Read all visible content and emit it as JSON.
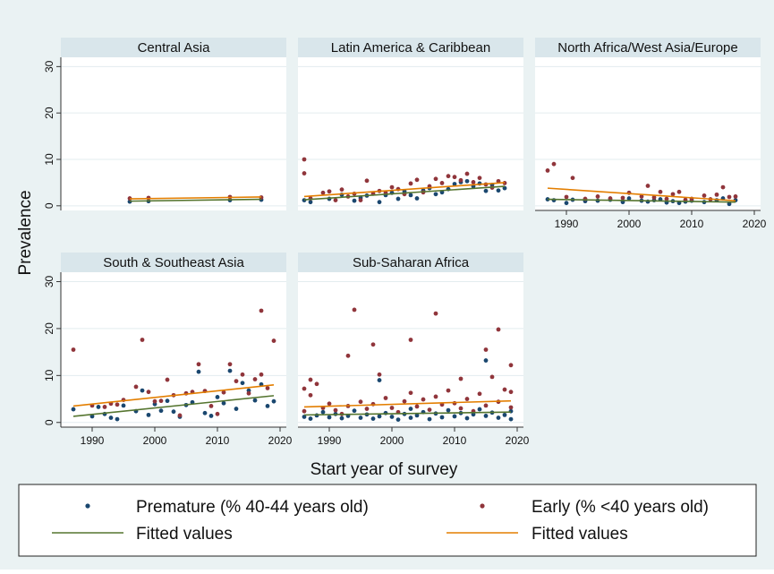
{
  "chart_data": {
    "type": "scatter",
    "ylabel": "Prevalence",
    "xlabel": "Start year of survey",
    "xlim": [
      1985,
      2021
    ],
    "ylim": [
      -1,
      32
    ],
    "x_ticks": [
      1990,
      2000,
      2010,
      2020
    ],
    "y_ticks": [
      0,
      10,
      20,
      30
    ],
    "grid": true,
    "legend": {
      "placement": "bottom",
      "entries": [
        {
          "label": "Premature (% 40-44 years old)",
          "symbol": "marker",
          "color": "#1a476f"
        },
        {
          "label": "Early (% <40 years old)",
          "symbol": "marker",
          "color": "#90353b"
        },
        {
          "label": "Fitted values",
          "symbol": "line",
          "color": "#55752f"
        },
        {
          "label": "Fitted values",
          "symbol": "line",
          "color": "#e37e00"
        }
      ]
    },
    "colors": {
      "premature": "#1a476f",
      "early": "#90353b",
      "fit_premature": "#55752f",
      "fit_early": "#e37e00",
      "panel_header": "#d9e6eb",
      "figure_bg": "#eaf2f3"
    },
    "panels": [
      {
        "title": "Central Asia",
        "fit_premature": [
          [
            1996,
            1.0
          ],
          [
            2017,
            1.4
          ]
        ],
        "fit_early": [
          [
            1996,
            1.5
          ],
          [
            2017,
            1.9
          ]
        ],
        "premature": [
          [
            1996,
            0.9
          ],
          [
            1999,
            1.0
          ],
          [
            2012,
            1.2
          ],
          [
            2017,
            1.3
          ]
        ],
        "early": [
          [
            1996,
            1.6
          ],
          [
            1999,
            1.7
          ],
          [
            2012,
            1.9
          ],
          [
            2017,
            1.8
          ]
        ]
      },
      {
        "title": "Latin America & Caribbean",
        "fit_premature": [
          [
            1986,
            1.3
          ],
          [
            2018,
            4.2
          ]
        ],
        "fit_early": [
          [
            1986,
            2.0
          ],
          [
            2018,
            5.0
          ]
        ],
        "premature": [
          [
            1986,
            1.2
          ],
          [
            1987,
            0.8
          ],
          [
            1990,
            1.5
          ],
          [
            1992,
            2.4
          ],
          [
            1994,
            1.1
          ],
          [
            1995,
            1.7
          ],
          [
            1996,
            2.2
          ],
          [
            1998,
            0.8
          ],
          [
            1999,
            2.3
          ],
          [
            2000,
            2.8
          ],
          [
            2001,
            1.5
          ],
          [
            2002,
            3.1
          ],
          [
            2003,
            2.3
          ],
          [
            2004,
            1.6
          ],
          [
            2005,
            3.3
          ],
          [
            2006,
            3.8
          ],
          [
            2007,
            2.5
          ],
          [
            2008,
            2.9
          ],
          [
            2009,
            3.6
          ],
          [
            2010,
            4.7
          ],
          [
            2011,
            5.1
          ],
          [
            2012,
            5.3
          ],
          [
            2013,
            4.2
          ],
          [
            2014,
            4.8
          ],
          [
            2015,
            3.2
          ],
          [
            2016,
            4.5
          ],
          [
            2017,
            3.3
          ],
          [
            2018,
            3.8
          ]
        ],
        "early": [
          [
            1986,
            10.0
          ],
          [
            1986,
            7.0
          ],
          [
            1987,
            1.6
          ],
          [
            1989,
            2.8
          ],
          [
            1990,
            3.1
          ],
          [
            1991,
            1.2
          ],
          [
            1992,
            3.5
          ],
          [
            1993,
            2.0
          ],
          [
            1994,
            2.6
          ],
          [
            1995,
            1.2
          ],
          [
            1996,
            5.4
          ],
          [
            1997,
            2.6
          ],
          [
            1998,
            3.2
          ],
          [
            1999,
            2.8
          ],
          [
            2000,
            4.0
          ],
          [
            2001,
            3.6
          ],
          [
            2002,
            2.5
          ],
          [
            2003,
            4.8
          ],
          [
            2004,
            5.6
          ],
          [
            2005,
            2.9
          ],
          [
            2006,
            4.2
          ],
          [
            2007,
            5.8
          ],
          [
            2008,
            4.9
          ],
          [
            2009,
            6.4
          ],
          [
            2010,
            6.2
          ],
          [
            2011,
            5.5
          ],
          [
            2012,
            6.9
          ],
          [
            2013,
            5.1
          ],
          [
            2014,
            6.0
          ],
          [
            2015,
            4.6
          ],
          [
            2016,
            3.9
          ],
          [
            2017,
            5.3
          ],
          [
            2018,
            4.9
          ]
        ]
      },
      {
        "title": "North Africa/West Asia/Europe",
        "fit_premature": [
          [
            1987,
            1.4
          ],
          [
            2017,
            0.8
          ]
        ],
        "fit_early": [
          [
            1987,
            3.8
          ],
          [
            2017,
            1.1
          ]
        ],
        "premature": [
          [
            1987,
            1.4
          ],
          [
            1988,
            1.2
          ],
          [
            1990,
            0.6
          ],
          [
            1991,
            1.3
          ],
          [
            1993,
            1.0
          ],
          [
            1995,
            1.1
          ],
          [
            1997,
            1.3
          ],
          [
            1999,
            0.8
          ],
          [
            2000,
            1.6
          ],
          [
            2002,
            1.1
          ],
          [
            2003,
            0.9
          ],
          [
            2004,
            1.2
          ],
          [
            2005,
            1.4
          ],
          [
            2006,
            0.7
          ],
          [
            2007,
            1.0
          ],
          [
            2008,
            0.6
          ],
          [
            2009,
            0.9
          ],
          [
            2010,
            1.1
          ],
          [
            2012,
            0.8
          ],
          [
            2014,
            1.2
          ],
          [
            2015,
            1.6
          ],
          [
            2016,
            0.4
          ],
          [
            2017,
            1.2
          ]
        ],
        "early": [
          [
            1987,
            7.6
          ],
          [
            1988,
            9.0
          ],
          [
            1990,
            1.9
          ],
          [
            1991,
            6.0
          ],
          [
            1993,
            1.5
          ],
          [
            1995,
            2.0
          ],
          [
            1997,
            1.6
          ],
          [
            1999,
            1.7
          ],
          [
            2000,
            2.8
          ],
          [
            2002,
            2.0
          ],
          [
            2003,
            4.3
          ],
          [
            2004,
            1.8
          ],
          [
            2005,
            3.0
          ],
          [
            2006,
            1.5
          ],
          [
            2007,
            2.5
          ],
          [
            2008,
            3.0
          ],
          [
            2009,
            1.3
          ],
          [
            2010,
            1.5
          ],
          [
            2012,
            2.2
          ],
          [
            2013,
            1.4
          ],
          [
            2014,
            2.4
          ],
          [
            2015,
            4.0
          ],
          [
            2016,
            1.9
          ],
          [
            2017,
            2.0
          ]
        ]
      },
      {
        "title": "South & Southeast Asia",
        "fit_premature": [
          [
            1987,
            1.3
          ],
          [
            2019,
            5.7
          ]
        ],
        "fit_early": [
          [
            1987,
            3.5
          ],
          [
            2019,
            8.0
          ]
        ],
        "premature": [
          [
            1987,
            2.8
          ],
          [
            1990,
            1.3
          ],
          [
            1991,
            3.3
          ],
          [
            1992,
            1.8
          ],
          [
            1993,
            1.0
          ],
          [
            1994,
            0.7
          ],
          [
            1995,
            3.6
          ],
          [
            1997,
            2.4
          ],
          [
            1998,
            6.8
          ],
          [
            1999,
            1.6
          ],
          [
            2000,
            3.9
          ],
          [
            2001,
            2.5
          ],
          [
            2002,
            4.6
          ],
          [
            2003,
            2.3
          ],
          [
            2004,
            1.2
          ],
          [
            2005,
            3.7
          ],
          [
            2006,
            4.3
          ],
          [
            2007,
            10.8
          ],
          [
            2008,
            2.0
          ],
          [
            2009,
            1.4
          ],
          [
            2010,
            5.4
          ],
          [
            2011,
            4.1
          ],
          [
            2012,
            11.0
          ],
          [
            2013,
            2.9
          ],
          [
            2014,
            8.4
          ],
          [
            2015,
            6.8
          ],
          [
            2016,
            4.7
          ],
          [
            2017,
            8.1
          ],
          [
            2018,
            3.5
          ],
          [
            2019,
            4.5
          ]
        ],
        "early": [
          [
            1987,
            15.5
          ],
          [
            1990,
            3.6
          ],
          [
            1992,
            3.3
          ],
          [
            1993,
            4.0
          ],
          [
            1994,
            3.8
          ],
          [
            1995,
            4.8
          ],
          [
            1997,
            7.6
          ],
          [
            1998,
            17.6
          ],
          [
            1999,
            6.5
          ],
          [
            2000,
            4.5
          ],
          [
            2001,
            4.6
          ],
          [
            2002,
            9.1
          ],
          [
            2003,
            5.8
          ],
          [
            2004,
            1.5
          ],
          [
            2005,
            6.2
          ],
          [
            2006,
            6.5
          ],
          [
            2007,
            12.4
          ],
          [
            2008,
            6.7
          ],
          [
            2009,
            3.5
          ],
          [
            2010,
            1.8
          ],
          [
            2011,
            6.4
          ],
          [
            2012,
            12.4
          ],
          [
            2013,
            8.8
          ],
          [
            2014,
            10.2
          ],
          [
            2015,
            6.2
          ],
          [
            2016,
            9.2
          ],
          [
            2017,
            23.8
          ],
          [
            2017,
            10.2
          ],
          [
            2018,
            7.3
          ],
          [
            2019,
            17.4
          ]
        ]
      },
      {
        "title": "Sub-Saharan Africa",
        "fit_premature": [
          [
            1986,
            1.6
          ],
          [
            2019,
            2.2
          ]
        ],
        "fit_early": [
          [
            1986,
            3.3
          ],
          [
            2019,
            4.6
          ]
        ],
        "premature": [
          [
            1986,
            1.2
          ],
          [
            1987,
            0.8
          ],
          [
            1988,
            1.5
          ],
          [
            1989,
            2.2
          ],
          [
            1990,
            1.1
          ],
          [
            1991,
            1.8
          ],
          [
            1992,
            0.9
          ],
          [
            1993,
            1.4
          ],
          [
            1994,
            2.5
          ],
          [
            1995,
            1.0
          ],
          [
            1996,
            1.7
          ],
          [
            1997,
            0.8
          ],
          [
            1998,
            9.0
          ],
          [
            1998,
            1.3
          ],
          [
            1999,
            2.0
          ],
          [
            2000,
            1.2
          ],
          [
            2001,
            0.6
          ],
          [
            2002,
            1.8
          ],
          [
            2003,
            2.9
          ],
          [
            2003,
            1.0
          ],
          [
            2004,
            1.5
          ],
          [
            2005,
            2.2
          ],
          [
            2006,
            0.7
          ],
          [
            2007,
            1.9
          ],
          [
            2008,
            1.1
          ],
          [
            2009,
            2.6
          ],
          [
            2010,
            1.3
          ],
          [
            2011,
            2.0
          ],
          [
            2012,
            0.9
          ],
          [
            2013,
            1.7
          ],
          [
            2014,
            2.8
          ],
          [
            2015,
            13.2
          ],
          [
            2015,
            1.4
          ],
          [
            2016,
            2.1
          ],
          [
            2017,
            1.0
          ],
          [
            2018,
            1.6
          ],
          [
            2019,
            2.4
          ],
          [
            2019,
            0.7
          ]
        ],
        "early": [
          [
            1986,
            7.2
          ],
          [
            1986,
            2.4
          ],
          [
            1987,
            5.8
          ],
          [
            1987,
            9.1
          ],
          [
            1988,
            8.2
          ],
          [
            1989,
            3.1
          ],
          [
            1990,
            4.0
          ],
          [
            1991,
            2.6
          ],
          [
            1992,
            1.8
          ],
          [
            1993,
            14.2
          ],
          [
            1993,
            3.5
          ],
          [
            1994,
            24.0
          ],
          [
            1995,
            4.4
          ],
          [
            1996,
            2.9
          ],
          [
            1997,
            16.6
          ],
          [
            1997,
            3.9
          ],
          [
            1998,
            10.2
          ],
          [
            1999,
            5.2
          ],
          [
            2000,
            3.1
          ],
          [
            2001,
            2.2
          ],
          [
            2002,
            4.5
          ],
          [
            2003,
            17.6
          ],
          [
            2003,
            6.3
          ],
          [
            2004,
            3.4
          ],
          [
            2005,
            4.9
          ],
          [
            2006,
            2.7
          ],
          [
            2007,
            23.2
          ],
          [
            2007,
            5.5
          ],
          [
            2008,
            3.8
          ],
          [
            2009,
            6.8
          ],
          [
            2010,
            4.1
          ],
          [
            2011,
            9.3
          ],
          [
            2011,
            3.0
          ],
          [
            2012,
            5.0
          ],
          [
            2013,
            2.4
          ],
          [
            2014,
            6.1
          ],
          [
            2015,
            15.5
          ],
          [
            2015,
            3.6
          ],
          [
            2016,
            9.7
          ],
          [
            2017,
            19.8
          ],
          [
            2017,
            4.4
          ],
          [
            2018,
            7.0
          ],
          [
            2019,
            12.2
          ],
          [
            2019,
            3.2
          ],
          [
            2019,
            6.5
          ]
        ]
      }
    ]
  }
}
